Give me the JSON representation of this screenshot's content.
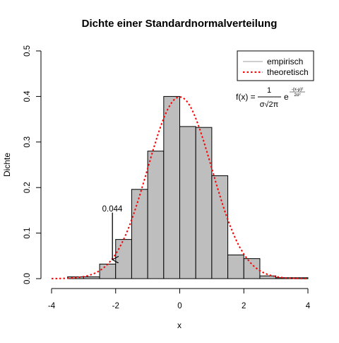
{
  "chart_data": {
    "type": "bar",
    "title": "Dichte einer Standardnormalverteilung",
    "xlabel": "x",
    "ylabel": "Dichte",
    "xlim": [
      -4,
      4
    ],
    "ylim": [
      0,
      0.5
    ],
    "x_ticks": [
      -4,
      -2,
      0,
      2,
      4
    ],
    "x_tick_labels": [
      "-4",
      "-2",
      "0",
      "2",
      "4"
    ],
    "y_ticks": [
      0,
      0.1,
      0.2,
      0.3,
      0.4,
      0.5
    ],
    "y_tick_labels": [
      "0.0",
      "0.1",
      "0.2",
      "0.3",
      "0.4",
      "0.5"
    ],
    "bin_edges": [
      -3.5,
      -3.0,
      -2.5,
      -2.0,
      -1.5,
      -1.0,
      -0.5,
      0.0,
      0.5,
      1.0,
      1.5,
      2.0,
      2.5,
      3.0,
      3.5,
      4.0
    ],
    "values": [
      0.004,
      0.004,
      0.032,
      0.086,
      0.196,
      0.28,
      0.4,
      0.334,
      0.332,
      0.226,
      0.052,
      0.044,
      0.006,
      0.002,
      0.002
    ],
    "bar_fill": "#bebebe",
    "bar_stroke": "#000000",
    "curve": {
      "name": "theoretisch",
      "color": "#ff0000",
      "style": "dotted",
      "mean": 0,
      "sd": 1,
      "x_range": [
        -4,
        4
      ]
    },
    "legend": {
      "placement": "top-right",
      "entries": [
        {
          "label": "empirisch",
          "color": "#bebebe",
          "style": "solid"
        },
        {
          "label": "theoretisch",
          "color": "#ff0000",
          "style": "dotted"
        }
      ]
    },
    "formula": {
      "lhs": "f(x) =",
      "numerator": "1",
      "denominator": "σ√2π",
      "exp_base": "e",
      "exponent_numerator": "-(x-μ)²",
      "exponent_denominator": "2σ²"
    },
    "annotation": {
      "text": "0.044",
      "x": -2.1,
      "y_start": 0.145,
      "y_end": 0.04
    },
    "grid": false
  }
}
